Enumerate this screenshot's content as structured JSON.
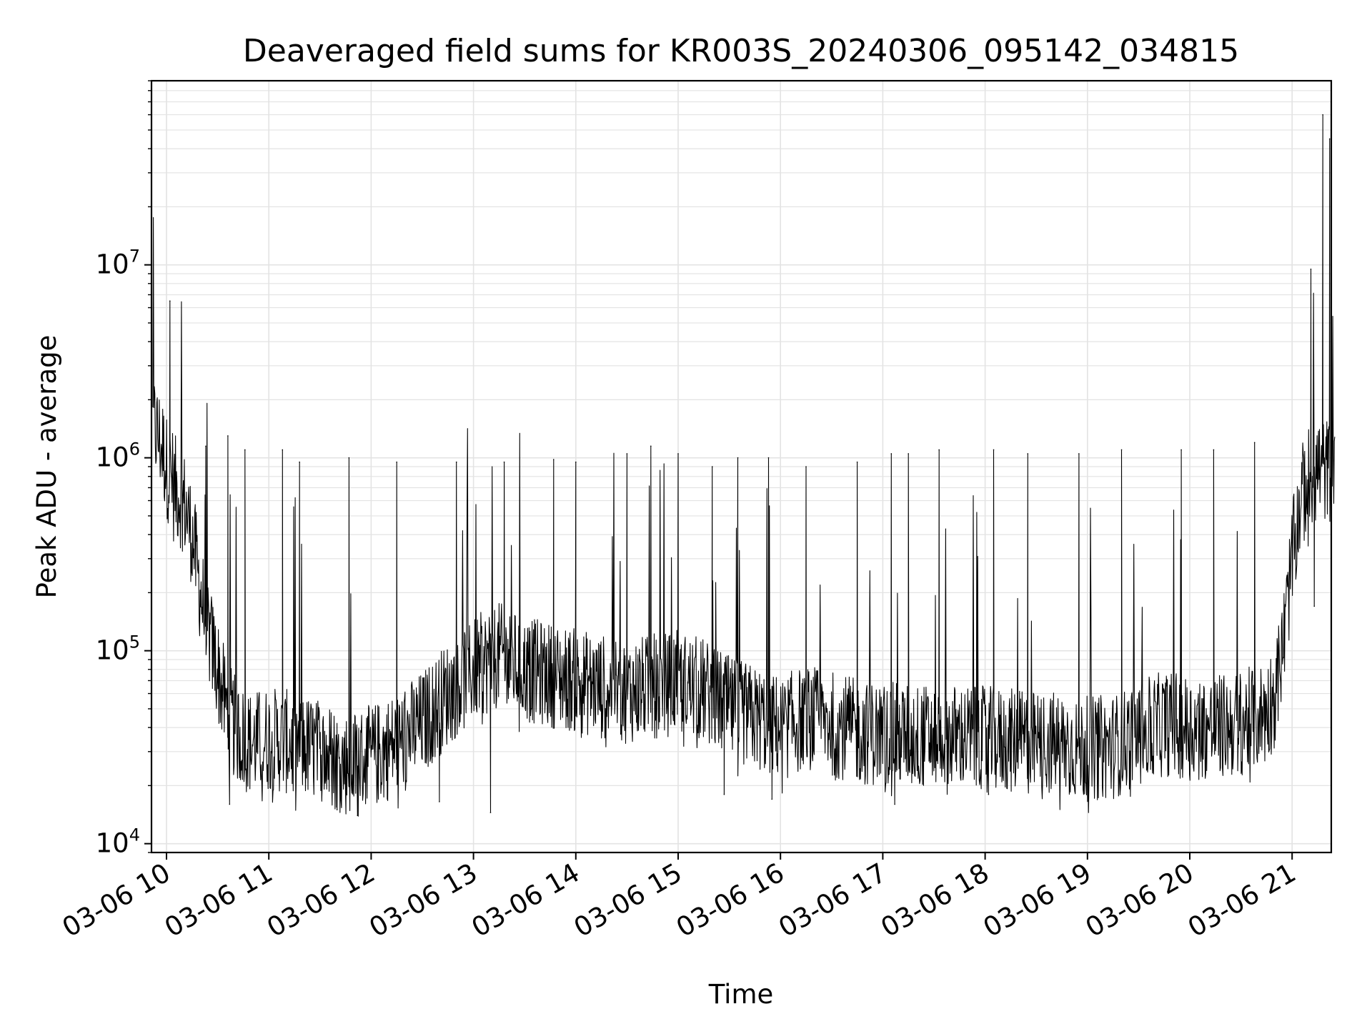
{
  "chart_data": {
    "type": "line",
    "title": "Deaveraged field sums for KR003S_20240306_095142_034815",
    "xlabel": "Time",
    "ylabel": "Peak ADU - average",
    "yscale": "log",
    "ylim": [
      9000,
      90000000
    ],
    "xlim": [
      "03-06 09:52",
      "03-06 21:25"
    ],
    "grid": true,
    "legend": "none",
    "line_color": "#000000",
    "grid_color": "#e3e3e3",
    "x_ticks": [
      "03-06 10",
      "03-06 11",
      "03-06 12",
      "03-06 13",
      "03-06 14",
      "03-06 15",
      "03-06 16",
      "03-06 17",
      "03-06 18",
      "03-06 19",
      "03-06 20",
      "03-06 21"
    ],
    "y_ticks": [
      {
        "base": "10",
        "exp": "4",
        "value": 10000
      },
      {
        "base": "10",
        "exp": "5",
        "value": 100000
      },
      {
        "base": "10",
        "exp": "6",
        "value": 1000000
      },
      {
        "base": "10",
        "exp": "7",
        "value": 10000000
      }
    ],
    "series": [
      {
        "x": [
          "03-06 09:52",
          "03-06 09:55",
          "03-06 09:58",
          "03-06 10:00",
          "03-06 10:05",
          "03-06 10:10",
          "03-06 10:15",
          "03-06 10:20",
          "03-06 10:25",
          "03-06 10:30",
          "03-06 10:35",
          "03-06 10:40",
          "03-06 10:45",
          "03-06 10:50",
          "03-06 11:00",
          "03-06 11:15",
          "03-06 11:30",
          "03-06 11:45",
          "03-06 12:00",
          "03-06 12:15",
          "03-06 12:30",
          "03-06 12:45",
          "03-06 13:00",
          "03-06 13:15",
          "03-06 13:30",
          "03-06 13:45",
          "03-06 14:00",
          "03-06 14:15",
          "03-06 14:30",
          "03-06 14:45",
          "03-06 15:00",
          "03-06 15:15",
          "03-06 15:30",
          "03-06 15:45",
          "03-06 16:00",
          "03-06 16:15",
          "03-06 16:30",
          "03-06 16:45",
          "03-06 17:00",
          "03-06 17:15",
          "03-06 17:30",
          "03-06 17:45",
          "03-06 18:00",
          "03-06 18:15",
          "03-06 18:30",
          "03-06 18:45",
          "03-06 19:00",
          "03-06 19:15",
          "03-06 19:30",
          "03-06 19:45",
          "03-06 20:00",
          "03-06 20:15",
          "03-06 20:30",
          "03-06 20:45",
          "03-06 20:50",
          "03-06 20:55",
          "03-06 21:00",
          "03-06 21:05",
          "03-06 21:10",
          "03-06 21:15",
          "03-06 21:20",
          "03-06 21:25"
        ],
        "values": [
          1500000,
          1300000,
          1100000,
          900000,
          700000,
          600000,
          400000,
          200000,
          120000,
          80000,
          50000,
          40000,
          35000,
          33000,
          35000,
          33000,
          30000,
          26000,
          28000,
          33000,
          42000,
          60000,
          80000,
          95000,
          80000,
          75000,
          70000,
          65000,
          62000,
          65000,
          68000,
          62000,
          50000,
          45000,
          40000,
          45000,
          42000,
          38000,
          37000,
          36000,
          36000,
          36000,
          35000,
          34000,
          33000,
          33000,
          31000,
          32000,
          37000,
          42000,
          40000,
          40000,
          42000,
          48000,
          60000,
          110000,
          300000,
          600000,
          800000,
          900000,
          850000,
          900000
        ]
      }
    ],
    "spikes": [
      {
        "x": "03-06 10:02",
        "value": 6500000
      },
      {
        "x": "03-06 10:23",
        "value": 1150000
      },
      {
        "x": "03-06 10:36",
        "value": 1300000
      },
      {
        "x": "03-06 10:46",
        "value": 1100000
      },
      {
        "x": "03-06 11:08",
        "value": 1100000
      },
      {
        "x": "03-06 11:18",
        "value": 950000
      },
      {
        "x": "03-06 11:47",
        "value": 1000000
      },
      {
        "x": "03-06 12:15",
        "value": 950000
      },
      {
        "x": "03-06 12:50",
        "value": 950000
      },
      {
        "x": "03-06 13:18",
        "value": 950000
      },
      {
        "x": "03-06 13:47",
        "value": 980000
      },
      {
        "x": "03-06 14:00",
        "value": 950000
      },
      {
        "x": "03-06 14:30",
        "value": 1050000
      },
      {
        "x": "03-06 14:44",
        "value": 1150000
      },
      {
        "x": "03-06 15:00",
        "value": 1050000
      },
      {
        "x": "03-06 15:20",
        "value": 900000
      },
      {
        "x": "03-06 15:35",
        "value": 1000000
      },
      {
        "x": "03-06 15:53",
        "value": 1000000
      },
      {
        "x": "03-06 16:15",
        "value": 900000
      },
      {
        "x": "03-06 16:45",
        "value": 950000
      },
      {
        "x": "03-06 17:05",
        "value": 1050000
      },
      {
        "x": "03-06 17:15",
        "value": 1050000
      },
      {
        "x": "03-06 17:33",
        "value": 1100000
      },
      {
        "x": "03-06 18:05",
        "value": 1100000
      },
      {
        "x": "03-06 18:25",
        "value": 1050000
      },
      {
        "x": "03-06 18:55",
        "value": 1050000
      },
      {
        "x": "03-06 19:20",
        "value": 1100000
      },
      {
        "x": "03-06 19:55",
        "value": 1100000
      },
      {
        "x": "03-06 20:14",
        "value": 1100000
      },
      {
        "x": "03-06 20:38",
        "value": 1200000
      },
      {
        "x": "03-06 21:11",
        "value": 9500000
      },
      {
        "x": "03-06 21:18",
        "value": 60000000
      },
      {
        "x": "03-06 21:22",
        "value": 45000000
      }
    ],
    "dips": [
      {
        "x": "03-06 10:37",
        "value": 16000
      },
      {
        "x": "03-06 11:40",
        "value": 15000
      },
      {
        "x": "03-06 11:52",
        "value": 14000
      },
      {
        "x": "03-06 12:40",
        "value": 16500
      },
      {
        "x": "03-06 13:10",
        "value": 14500
      },
      {
        "x": "03-06 15:27",
        "value": 18000
      },
      {
        "x": "03-06 15:55",
        "value": 17000
      },
      {
        "x": "03-06 17:07",
        "value": 16000
      },
      {
        "x": "03-06 18:02",
        "value": 18000
      },
      {
        "x": "03-06 21:13",
        "value": 170000
      }
    ]
  }
}
